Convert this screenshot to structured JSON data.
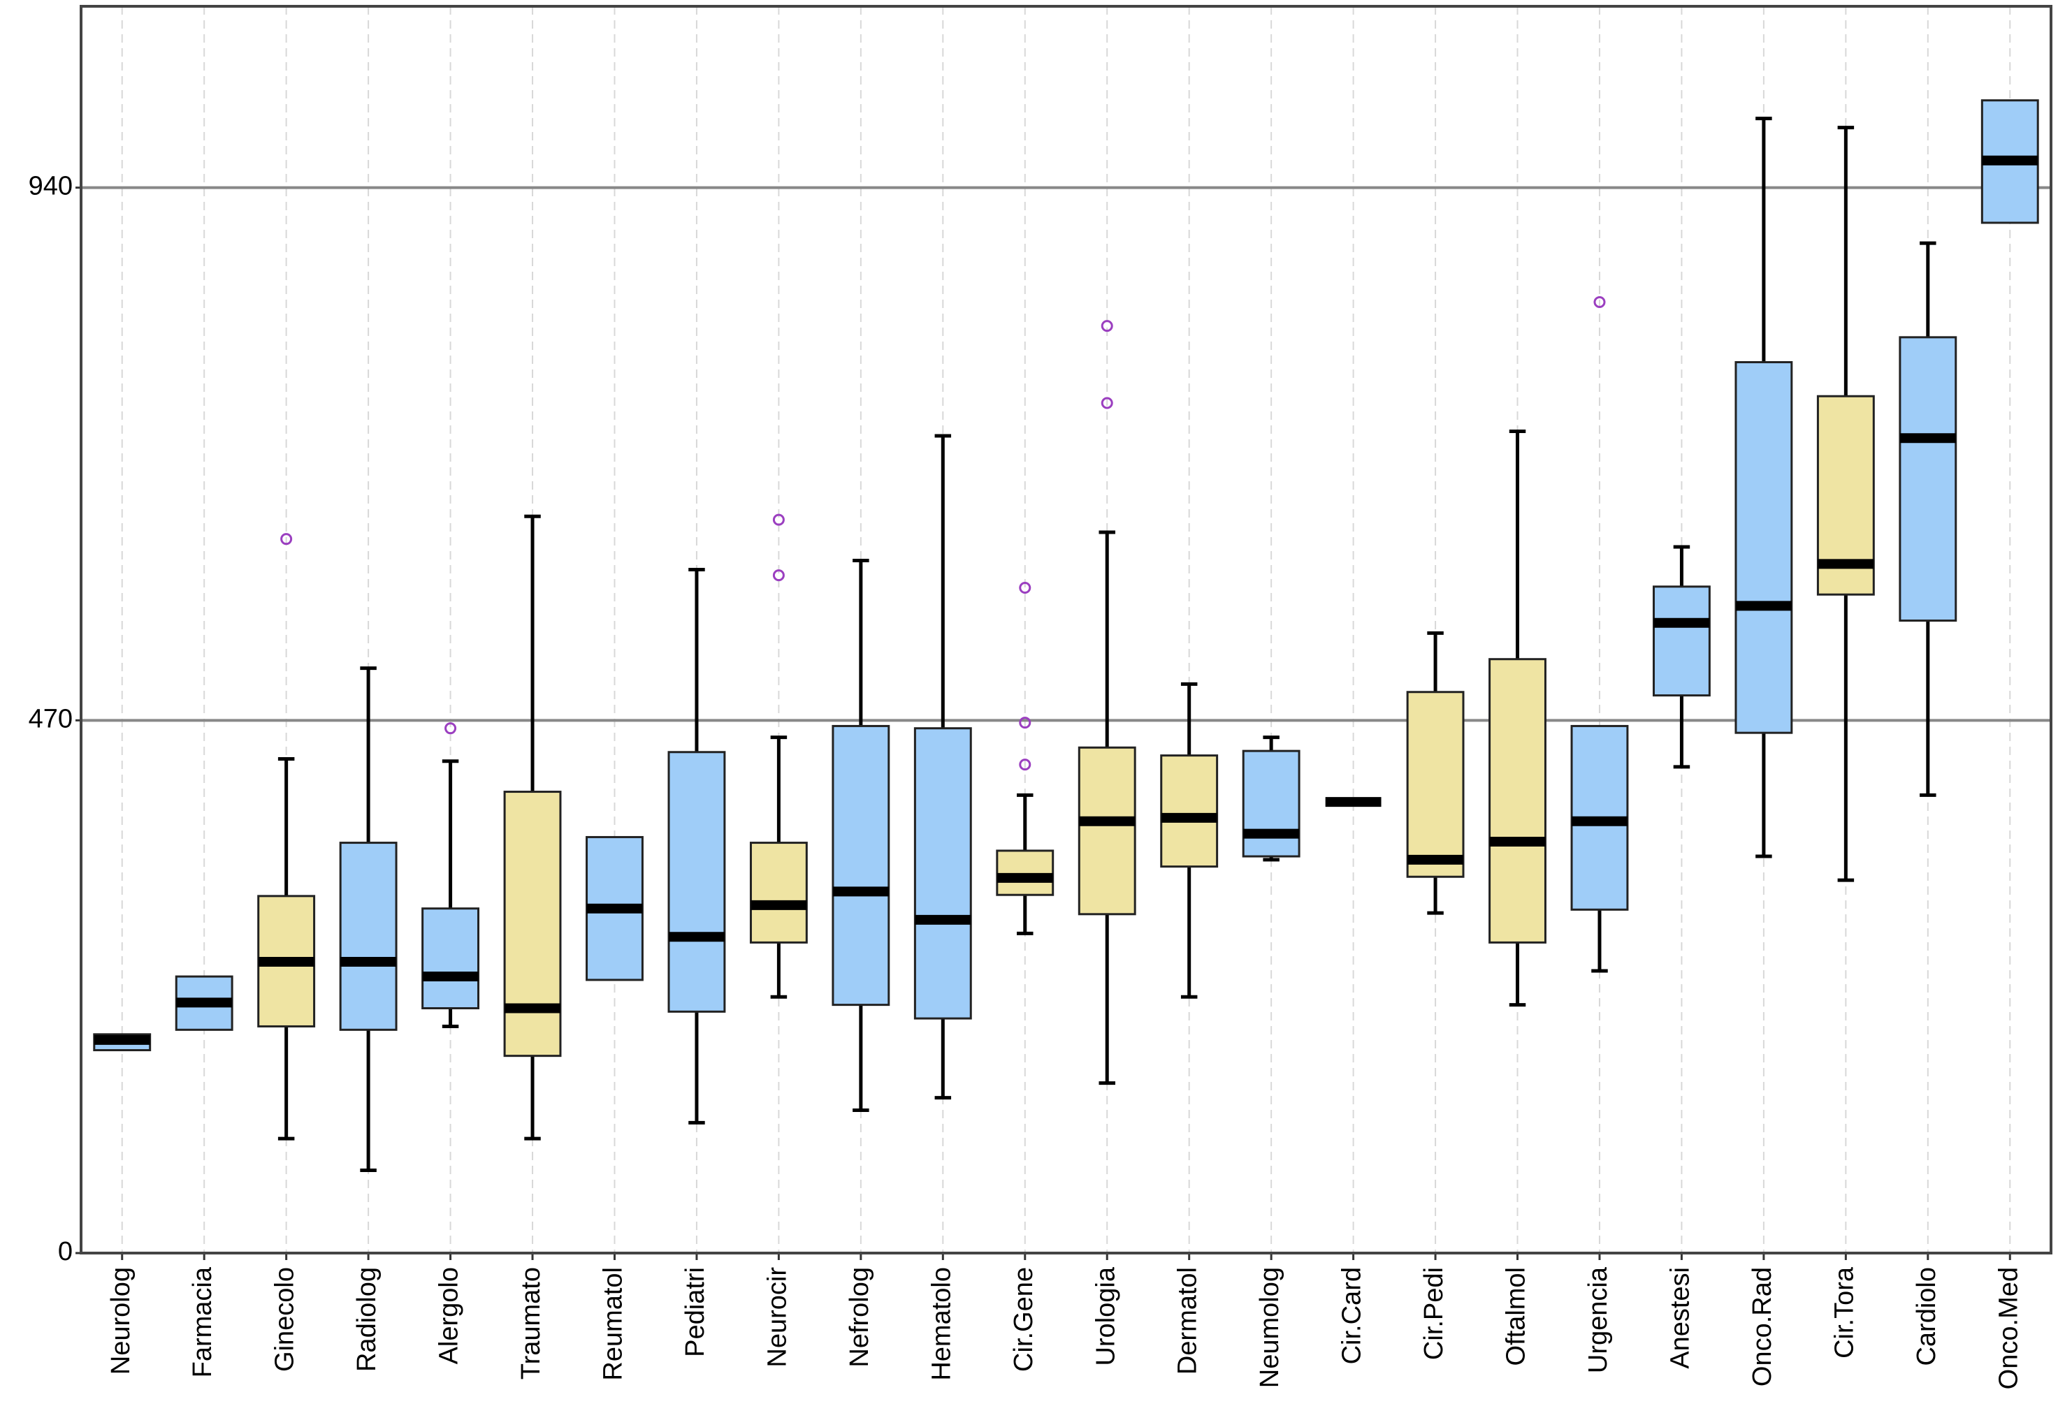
{
  "chart_data": {
    "type": "box",
    "categories": [
      "Neurolog",
      "Farmacia",
      "Ginecolo",
      "Radiolog",
      "Alergolo",
      "Traumato",
      "Reumatol",
      "Pediatri",
      "Neurocir",
      "Nefrolog",
      "Hematolo",
      "Cir.Gene",
      "Urologia",
      "Dermatol",
      "Neumolog",
      "Cir.Card",
      "Cir.Pedi",
      "Oftalmol",
      "Urgencia",
      "Anestesi",
      "Onco.Rad",
      "Cir.Tora",
      "Cardiolo",
      "Onco.Med"
    ],
    "boxes": [
      {
        "min": 179,
        "q1": 179,
        "median": 188,
        "q3": 193,
        "max": 193,
        "outliers": [],
        "color": "#9fcdf8"
      },
      {
        "min": 197,
        "q1": 197,
        "median": 221,
        "q3": 244,
        "max": 244,
        "outliers": [],
        "color": "#9fcdf8"
      },
      {
        "min": 101,
        "q1": 200,
        "median": 257,
        "q3": 315,
        "max": 436,
        "outliers": [
          630
        ],
        "color": "#efe4a3"
      },
      {
        "min": 73,
        "q1": 197,
        "median": 257,
        "q3": 362,
        "max": 516,
        "outliers": [],
        "color": "#9fcdf8"
      },
      {
        "min": 200,
        "q1": 216,
        "median": 244,
        "q3": 304,
        "max": 434,
        "outliers": [
          463
        ],
        "color": "#9fcdf8"
      },
      {
        "min": 101,
        "q1": 174,
        "median": 216,
        "q3": 407,
        "max": 650,
        "outliers": [],
        "color": "#efe4a3"
      },
      {
        "min": 241,
        "q1": 241,
        "median": 304,
        "q3": 367,
        "max": 367,
        "outliers": [],
        "color": "#9fcdf8"
      },
      {
        "min": 115,
        "q1": 213,
        "median": 279,
        "q3": 442,
        "max": 603,
        "outliers": [],
        "color": "#9fcdf8"
      },
      {
        "min": 226,
        "q1": 274,
        "median": 307,
        "q3": 362,
        "max": 455,
        "outliers": [
          598,
          647
        ],
        "color": "#efe4a3"
      },
      {
        "min": 126,
        "q1": 219,
        "median": 319,
        "q3": 465,
        "max": 611,
        "outliers": [],
        "color": "#9fcdf8"
      },
      {
        "min": 137,
        "q1": 207,
        "median": 294,
        "q3": 463,
        "max": 721,
        "outliers": [],
        "color": "#9fcdf8"
      },
      {
        "min": 282,
        "q1": 316,
        "median": 331,
        "q3": 355,
        "max": 404,
        "outliers": [
          468,
          431,
          587
        ],
        "color": "#efe4a3"
      },
      {
        "min": 150,
        "q1": 299,
        "median": 381,
        "q3": 446,
        "max": 636,
        "outliers": [
          818,
          750
        ],
        "color": "#efe4a3"
      },
      {
        "min": 226,
        "q1": 341,
        "median": 384,
        "q3": 439,
        "max": 502,
        "outliers": [],
        "color": "#efe4a3"
      },
      {
        "min": 347,
        "q1": 350,
        "median": 370,
        "q3": 443,
        "max": 455,
        "outliers": [],
        "color": "#9fcdf8"
      },
      {
        "min": 398,
        "q1": 398,
        "median": 398,
        "q3": 398,
        "max": 398,
        "outliers": [],
        "color": "#9fcdf8"
      },
      {
        "min": 300,
        "q1": 332,
        "median": 347,
        "q3": 495,
        "max": 547,
        "outliers": [],
        "color": "#efe4a3"
      },
      {
        "min": 219,
        "q1": 274,
        "median": 363,
        "q3": 524,
        "max": 725,
        "outliers": [],
        "color": "#efe4a3"
      },
      {
        "min": 249,
        "q1": 303,
        "median": 381,
        "q3": 465,
        "max": 465,
        "outliers": [
          839
        ],
        "color": "#9fcdf8"
      },
      {
        "min": 429,
        "q1": 492,
        "median": 556,
        "q3": 588,
        "max": 623,
        "outliers": [],
        "color": "#9fcdf8"
      },
      {
        "min": 350,
        "q1": 459,
        "median": 571,
        "q3": 786,
        "max": 1001,
        "outliers": [],
        "color": "#9fcdf8"
      },
      {
        "min": 329,
        "q1": 581,
        "median": 608,
        "q3": 756,
        "max": 993,
        "outliers": [],
        "color": "#efe4a3"
      },
      {
        "min": 404,
        "q1": 558,
        "median": 719,
        "q3": 808,
        "max": 891,
        "outliers": [],
        "color": "#9fcdf8"
      },
      {
        "min": 909,
        "q1": 909,
        "median": 964,
        "q3": 1017,
        "max": 1017,
        "outliers": [],
        "color": "#9fcdf8"
      }
    ],
    "outlier_color": "#9b3fc0",
    "ylim": [
      0,
      1100
    ],
    "yticks": [
      0,
      470,
      940
    ],
    "grid": true
  }
}
